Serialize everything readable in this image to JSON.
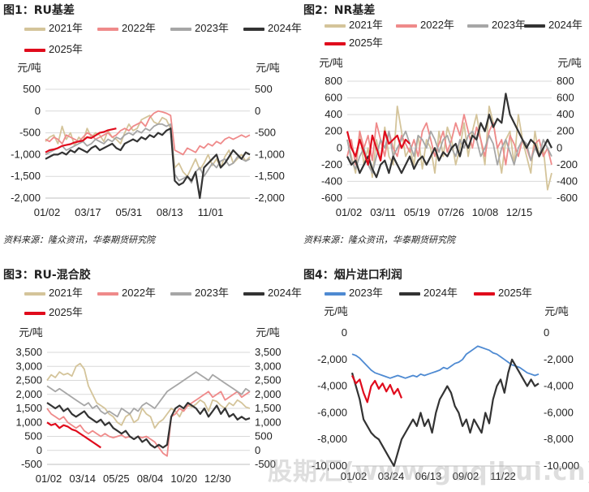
{
  "watermark": "股期汇(www.guqihui.cn)",
  "panels": [
    {
      "title": "图1：RU基差",
      "source": "资料来源：隆众资讯，华泰期货研究院",
      "unit_left": "元/吨",
      "unit_right": "元/吨"
    },
    {
      "title": "图2：NR基差",
      "source": "资料来源：隆众资讯，华泰期货研究院",
      "unit_left": "元/吨",
      "unit_right": "元/吨"
    },
    {
      "title": "图3：RU-混合胶",
      "source": "",
      "unit_left": "元/吨",
      "unit_right": "元/吨"
    },
    {
      "title": "图4：烟片进口利润",
      "source": "",
      "unit_left": "元/吨",
      "unit_right": "元/吨"
    }
  ],
  "chart_data": [
    {
      "type": "line",
      "title": "图1：RU基差",
      "ylim": [
        -2000,
        500
      ],
      "yticks": [
        500,
        0,
        -500,
        -1000,
        -1500,
        -2000
      ],
      "ytick_labels": [
        "500",
        "0",
        "-500",
        "-1,000",
        "-1,500",
        "-2,000"
      ],
      "xticks": [
        "01/02",
        "03/17",
        "05/31",
        "08/13",
        "11/01"
      ],
      "grid": true,
      "legend_position": "top",
      "series": [
        {
          "name": "2021年",
          "color": "#d4c49a",
          "values": [
            -700,
            -600,
            -550,
            -750,
            -350,
            -650,
            -500,
            -800,
            -600,
            -700,
            -400,
            -600,
            -500,
            -550,
            -700,
            -450,
            -600,
            -650,
            -750,
            -500,
            -300,
            -450,
            -400,
            -200,
            -150,
            -100,
            -250,
            -300,
            -150,
            -200,
            -400,
            -1300,
            -1200,
            -1400,
            -1500,
            -1300,
            -1100,
            -1350,
            -1200,
            -1000,
            -1250,
            -1100,
            -1300,
            -1050,
            -900,
            -1200,
            -1100,
            -1000,
            -1150,
            -1050
          ]
        },
        {
          "name": "2022年",
          "color": "#ef8a8a",
          "values": [
            -650,
            -700,
            -600,
            -650,
            -750,
            -550,
            -600,
            -650,
            -700,
            -600,
            -500,
            -550,
            -650,
            -600,
            -550,
            -500,
            -600,
            -550,
            -450,
            -400,
            -450,
            -350,
            -300,
            -250,
            -350,
            -150,
            -50,
            0,
            -20,
            -50,
            -100,
            -900,
            -950,
            -1000,
            -850,
            -900,
            -950,
            -800,
            -850,
            -750,
            -800,
            -700,
            -750,
            -650,
            -600,
            -650,
            -600,
            -550,
            -600,
            -550
          ]
        },
        {
          "name": "2023年",
          "color": "#a6a6a6",
          "values": [
            -1000,
            -950,
            -900,
            -850,
            -800,
            -900,
            -850,
            -800,
            -750,
            -700,
            -800,
            -750,
            -650,
            -700,
            -750,
            -650,
            -700,
            -600,
            -650,
            -550,
            -500,
            -550,
            -450,
            -500,
            -400,
            -450,
            -350,
            -300,
            -300,
            -350,
            -300,
            -1450,
            -1600,
            -1550,
            -1500,
            -1650,
            -1400,
            -1300,
            -1500,
            -1350,
            -1200,
            -1300,
            -1150,
            -1100,
            -1250,
            -1200,
            -1050,
            -1100,
            -1150,
            -1100
          ]
        },
        {
          "name": "2024年",
          "color": "#333333",
          "values": [
            -1100,
            -1050,
            -1000,
            -1000,
            -950,
            -1000,
            -900,
            -950,
            -850,
            -900,
            -950,
            -850,
            -800,
            -900,
            -850,
            -800,
            -750,
            -850,
            -900,
            -750,
            -700,
            -650,
            -700,
            -600,
            -650,
            -550,
            -600,
            -500,
            -550,
            -450,
            -400,
            -1600,
            -1700,
            -1650,
            -1500,
            -1600,
            -1400,
            -2000,
            -1300,
            -1200,
            -1100,
            -1000,
            -1300,
            -1200,
            -1050,
            -900,
            -1000,
            -1100,
            -950,
            -1000
          ]
        },
        {
          "name": "2025年",
          "color": "#e00b1c",
          "values": [
            -950,
            -900,
            -880,
            -850,
            -800,
            -780,
            -760,
            -720,
            -700,
            -680,
            -600,
            -620,
            -560,
            -500,
            -480,
            -440,
            -420,
            -400
          ]
        }
      ]
    },
    {
      "type": "line",
      "title": "图2：NR基差",
      "ylim": [
        -600,
        800
      ],
      "yticks": [
        800,
        600,
        400,
        200,
        0,
        -200,
        -400,
        -600
      ],
      "ytick_labels": [
        "800",
        "600",
        "400",
        "200",
        "0",
        "-200",
        "-400",
        "-600"
      ],
      "xticks": [
        "01/02",
        "03/11",
        "05/19",
        "07/26",
        "10/08",
        "12/15"
      ],
      "grid": true,
      "legend_position": "top",
      "series": [
        {
          "name": "2021年",
          "color": "#d4c49a",
          "values": [
            100,
            -100,
            -300,
            200,
            -200,
            0,
            -350,
            100,
            -150,
            250,
            -100,
            -200,
            500,
            200,
            -100,
            0,
            -200,
            150,
            -250,
            100,
            0,
            -300,
            200,
            -100,
            250,
            100,
            -200,
            0,
            300,
            -100,
            200,
            400,
            100,
            -200,
            500,
            300,
            0,
            -300,
            100,
            200,
            -200,
            400,
            100,
            -100,
            -300,
            200,
            -100,
            0,
            -500,
            -300
          ]
        },
        {
          "name": "2022年",
          "color": "#ef8a8a",
          "values": [
            -100,
            100,
            -200,
            200,
            0,
            150,
            -150,
            300,
            100,
            -100,
            200,
            0,
            -100,
            150,
            50,
            -50,
            100,
            -100,
            200,
            300,
            100,
            -100,
            50,
            200,
            -50,
            100,
            300,
            150,
            400,
            200,
            0,
            250,
            100,
            -100,
            200,
            300,
            0,
            100,
            -200,
            150,
            50,
            -100,
            100,
            0,
            -150,
            50,
            100,
            -100,
            0,
            -200
          ]
        },
        {
          "name": "2023年",
          "color": "#a6a6a6",
          "values": [
            100,
            -150,
            -250,
            -100,
            0,
            -200,
            -300,
            -100,
            100,
            0,
            200,
            -100,
            0,
            100,
            200,
            50,
            -100,
            150,
            100,
            0,
            200,
            100,
            -50,
            100,
            150,
            0,
            -100,
            100,
            0,
            150,
            200,
            100,
            -100,
            0,
            150,
            50,
            -200,
            0,
            100,
            -50,
            -200,
            0,
            100,
            50,
            -150,
            0,
            -100,
            100,
            0,
            -100
          ]
        },
        {
          "name": "2024年",
          "color": "#333333",
          "values": [
            -100,
            -200,
            -150,
            -300,
            -200,
            -100,
            -250,
            -350,
            -200,
            -150,
            -300,
            -100,
            -200,
            -300,
            -200,
            -100,
            -250,
            -150,
            -100,
            -200,
            -100,
            0,
            -150,
            -50,
            -100,
            0,
            50,
            -100,
            100,
            0,
            150,
            100,
            300,
            200,
            400,
            250,
            350,
            300,
            650,
            400,
            300,
            200,
            100,
            0,
            100,
            50,
            -100,
            0,
            100,
            0
          ]
        },
        {
          "name": "2025年",
          "color": "#e00b1c",
          "values": [
            200,
            0,
            -100,
            100,
            -50,
            -200,
            150,
            0,
            -150,
            200,
            50,
            100,
            150,
            0,
            100,
            50
          ]
        }
      ]
    },
    {
      "type": "line",
      "title": "图3：RU-混合胶",
      "ylim": [
        -500,
        3500
      ],
      "yticks": [
        3500,
        3000,
        2500,
        2000,
        1500,
        1000,
        500,
        0,
        -500
      ],
      "ytick_labels": [
        "3,500",
        "3,000",
        "2,500",
        "2,000",
        "1,500",
        "1,000",
        "500",
        "0",
        "-500"
      ],
      "xticks": [
        "01/02",
        "03/14",
        "05/25",
        "08/04",
        "10/20",
        "12/30"
      ],
      "grid": true,
      "legend_position": "top",
      "series": [
        {
          "name": "2021年",
          "color": "#d4c49a",
          "values": [
            2500,
            2700,
            2600,
            2800,
            2700,
            2750,
            2650,
            3000,
            3100,
            2900,
            2300,
            2000,
            1700,
            1600,
            1500,
            1300,
            1200,
            1000,
            900,
            1200,
            1300,
            1000,
            1100,
            1500,
            1300,
            1200,
            800,
            1000,
            1100,
            1300,
            1500,
            1400,
            1200,
            1500,
            1600,
            1550,
            1650,
            1800,
            1700,
            1400,
            1800,
            1750,
            1600,
            1500,
            1700,
            1600,
            1800,
            1700,
            1550,
            1500
          ]
        },
        {
          "name": "2022年",
          "color": "#ef8a8a",
          "values": [
            1500,
            1300,
            1200,
            1100,
            1200,
            1000,
            900,
            800,
            900,
            700,
            600,
            700,
            600,
            500,
            600,
            500,
            450,
            500,
            550,
            450,
            500,
            400,
            500,
            450,
            500,
            400,
            300,
            100,
            -100,
            -200,
            1200,
            1300,
            1500,
            1400,
            1600,
            1700,
            1800,
            1900,
            2000,
            2100,
            1900,
            2000,
            2100,
            1800,
            1900,
            2000,
            2100,
            1900,
            2000,
            2100
          ]
        },
        {
          "name": "2023年",
          "color": "#a6a6a6",
          "values": [
            2300,
            2200,
            2100,
            2200,
            2100,
            2000,
            1900,
            1800,
            1700,
            1600,
            1700,
            1500,
            1600,
            1400,
            1300,
            1400,
            1300,
            1200,
            1500,
            1400,
            1300,
            1500,
            1400,
            1600,
            1700,
            1600,
            1500,
            1700,
            1900,
            2100,
            2200,
            2300,
            2400,
            2500,
            2600,
            2700,
            2800,
            2700,
            2600,
            2500,
            2700,
            2600,
            2500,
            2400,
            2300,
            2200,
            2100,
            2000,
            2200,
            2100
          ]
        },
        {
          "name": "2024年",
          "color": "#333333",
          "values": [
            1700,
            1600,
            1500,
            1600,
            1400,
            1500,
            1300,
            1200,
            1300,
            1400,
            1200,
            1100,
            1000,
            1100,
            900,
            1000,
            800,
            700,
            600,
            700,
            500,
            400,
            500,
            300,
            400,
            200,
            100,
            200,
            100,
            200,
            1200,
            1500,
            1600,
            1500,
            1700,
            1600,
            1500,
            1300,
            1500,
            1200,
            1400,
            1600,
            1300,
            1500,
            1200,
            1300,
            1100,
            1200,
            1100,
            1150
          ]
        },
        {
          "name": "2025年",
          "color": "#e00b1c",
          "values": [
            1000,
            900,
            950,
            800,
            900,
            850,
            750,
            700,
            600,
            500,
            400,
            300,
            200,
            100
          ]
        }
      ]
    },
    {
      "type": "line",
      "title": "图4：烟片进口利润",
      "ylim": [
        -10000,
        0
      ],
      "yticks": [
        0,
        -2000,
        -4000,
        -6000,
        -8000,
        -10000
      ],
      "ytick_labels": [
        "0",
        "-2,000",
        "-4,000",
        "-6,000",
        "-8,000",
        "-10,000"
      ],
      "xticks": [
        "01/02",
        "03/24",
        "06/13",
        "09/02",
        "11/22"
      ],
      "grid": false,
      "legend_position": "top",
      "series": [
        {
          "name": "2023年",
          "color": "#4e8ad2",
          "values": [
            -1600,
            -1700,
            -1900,
            -2200,
            -2500,
            -2800,
            -3000,
            -3100,
            -3200,
            -3300,
            -3400,
            -3300,
            -3200,
            -3300,
            -3400,
            -3300,
            -3200,
            -3300,
            -3100,
            -3200,
            -3100,
            -3000,
            -2900,
            -2800,
            -2600,
            -2700,
            -2500,
            -2300,
            -2200,
            -2000,
            -1600,
            -1400,
            -1200,
            -1000,
            -1100,
            -1200,
            -1300,
            -1500,
            -1600,
            -1800,
            -2000,
            -2200,
            -2400,
            -2500,
            -2600,
            -2800,
            -3000,
            -3100,
            -3200,
            -3100
          ]
        },
        {
          "name": "2024年",
          "color": "#333333",
          "values": [
            -3000,
            -4000,
            -5000,
            -6500,
            -7000,
            -7500,
            -7800,
            -8000,
            -8500,
            -9000,
            -9500,
            -10000,
            -9000,
            -8000,
            -7500,
            -7000,
            -6500,
            -7000,
            -6000,
            -7000,
            -6500,
            -7500,
            -6000,
            -5000,
            -4500,
            -4000,
            -4500,
            -5500,
            -6000,
            -7000,
            -6500,
            -7500,
            -6500,
            -7000,
            -7500,
            -6000,
            -6800,
            -5000,
            -4000,
            -3500,
            -4500,
            -3000,
            -2000,
            -2500,
            -3000,
            -3500,
            -4000,
            -3500,
            -4000,
            -3800
          ]
        },
        {
          "name": "2025年",
          "color": "#e00b1c",
          "values": [
            -3200,
            -3800,
            -3500,
            -4500,
            -5200,
            -4000,
            -3600,
            -4200,
            -3800,
            -4400,
            -3900,
            -4600,
            -4200,
            -4900
          ]
        }
      ]
    }
  ]
}
